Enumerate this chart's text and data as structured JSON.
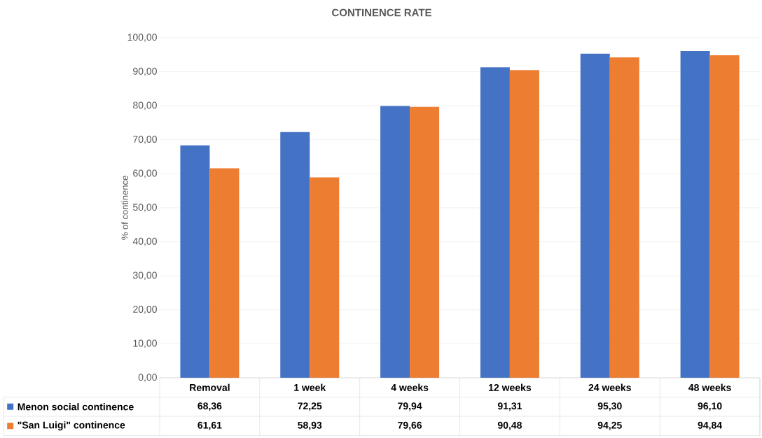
{
  "chart_data": {
    "type": "bar",
    "title": "CONTINENCE RATE",
    "ylabel": "% of continence",
    "categories": [
      "Removal",
      "1 week",
      "4 weeks",
      "12 weeks",
      "24 weeks",
      "48 weeks"
    ],
    "series": [
      {
        "name": "Menon social continence",
        "color": "#4472c4",
        "values": [
          68.36,
          72.25,
          79.94,
          91.31,
          95.3,
          96.1
        ],
        "value_labels": [
          "68,36",
          "72,25",
          "79,94",
          "91,31",
          "95,30",
          "96,10"
        ]
      },
      {
        "name": "\"San Luigi\" continence",
        "color": "#ed7d31",
        "values": [
          61.61,
          58.93,
          79.66,
          90.48,
          94.25,
          94.84
        ],
        "value_labels": [
          "61,61",
          "58,93",
          "79,66",
          "90,48",
          "94,25",
          "94,84"
        ]
      }
    ],
    "ylim": [
      0,
      100
    ],
    "yticks": [
      {
        "value": 0,
        "label": "0,00"
      },
      {
        "value": 10,
        "label": "10,00"
      },
      {
        "value": 20,
        "label": "20,00"
      },
      {
        "value": 30,
        "label": "30,00"
      },
      {
        "value": 40,
        "label": "40,00"
      },
      {
        "value": 50,
        "label": "50,00"
      },
      {
        "value": 60,
        "label": "60,00"
      },
      {
        "value": 70,
        "label": "70,00"
      },
      {
        "value": 80,
        "label": "80,00"
      },
      {
        "value": 90,
        "label": "90,00"
      },
      {
        "value": 100,
        "label": "100,00"
      }
    ],
    "grid": "y",
    "legend": "bottom"
  }
}
